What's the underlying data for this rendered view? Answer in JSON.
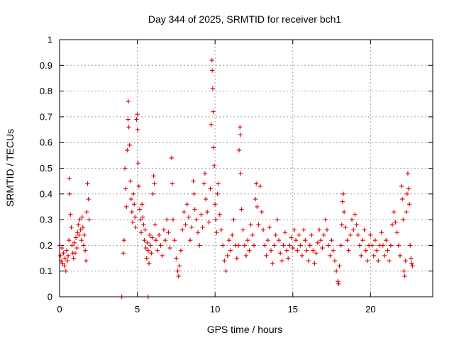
{
  "chart_data": {
    "type": "scatter",
    "title": "Day 344 of 2025, SRMTID for receiver bch1",
    "xlabel": "GPS time / hours",
    "ylabel": "SRMTID / TECUs",
    "xlim": [
      0,
      24
    ],
    "ylim": [
      0,
      1
    ],
    "xticks": [
      0,
      5,
      10,
      15,
      20
    ],
    "xtick_labels": [
      "0",
      "5",
      "10",
      "15",
      "20"
    ],
    "yticks": [
      0,
      0.1,
      0.2,
      0.3,
      0.4,
      0.5,
      0.6,
      0.7,
      0.8,
      0.9,
      1
    ],
    "ytick_labels": [
      "0",
      "0.1",
      "0.2",
      "0.3",
      "0.4",
      "0.5",
      "0.6",
      "0.7",
      "0.8",
      "0.9",
      "1"
    ],
    "grid": true,
    "marker": "+",
    "color": "#dd0000",
    "series": [
      {
        "name": "SRMTID",
        "points": [
          [
            0.0,
            0.2
          ],
          [
            0.05,
            0.16
          ],
          [
            0.1,
            0.14
          ],
          [
            0.15,
            0.19
          ],
          [
            0.2,
            0.13
          ],
          [
            0.25,
            0.17
          ],
          [
            0.3,
            0.12
          ],
          [
            0.35,
            0.15
          ],
          [
            0.4,
            0.1
          ],
          [
            0.45,
            0.18
          ],
          [
            0.5,
            0.14
          ],
          [
            0.55,
            0.16
          ],
          [
            0.6,
            0.22
          ],
          [
            0.62,
            0.46
          ],
          [
            0.65,
            0.4
          ],
          [
            0.7,
            0.32
          ],
          [
            0.75,
            0.27
          ],
          [
            0.8,
            0.2
          ],
          [
            0.85,
            0.17
          ],
          [
            0.9,
            0.15
          ],
          [
            0.95,
            0.21
          ],
          [
            1.0,
            0.17
          ],
          [
            1.05,
            0.23
          ],
          [
            1.1,
            0.19
          ],
          [
            1.15,
            0.25
          ],
          [
            1.2,
            0.28
          ],
          [
            1.25,
            0.24
          ],
          [
            1.3,
            0.3
          ],
          [
            1.35,
            0.26
          ],
          [
            1.4,
            0.22
          ],
          [
            1.45,
            0.31
          ],
          [
            1.5,
            0.27
          ],
          [
            1.55,
            0.2
          ],
          [
            1.6,
            0.24
          ],
          [
            1.65,
            0.18
          ],
          [
            1.7,
            0.14
          ],
          [
            1.75,
            0.33
          ],
          [
            1.8,
            0.44
          ],
          [
            1.85,
            0.38
          ],
          [
            1.9,
            0.3
          ],
          [
            4.1,
            0.17
          ],
          [
            4.15,
            0.22
          ],
          [
            4.2,
            0.5
          ],
          [
            4.25,
            0.42
          ],
          [
            4.3,
            0.35
          ],
          [
            4.35,
            0.57
          ],
          [
            4.4,
            0.69
          ],
          [
            4.42,
            0.76
          ],
          [
            4.45,
            0.66
          ],
          [
            4.5,
            0.59
          ],
          [
            4.55,
            0.45
          ],
          [
            4.6,
            0.38
          ],
          [
            4.65,
            0.33
          ],
          [
            4.7,
            0.29
          ],
          [
            4.75,
            0.4
          ],
          [
            4.8,
            0.36
          ],
          [
            4.85,
            0.31
          ],
          [
            4.9,
            0.27
          ],
          [
            4.95,
            0.69
          ],
          [
            5.0,
            0.71
          ],
          [
            5.02,
            0.65
          ],
          [
            5.05,
            0.52
          ],
          [
            5.1,
            0.43
          ],
          [
            5.15,
            0.34
          ],
          [
            5.2,
            0.3
          ],
          [
            5.25,
            0.25
          ],
          [
            5.3,
            0.36
          ],
          [
            5.35,
            0.31
          ],
          [
            5.4,
            0.28
          ],
          [
            5.45,
            0.22
          ],
          [
            5.5,
            0.26
          ],
          [
            5.55,
            0.19
          ],
          [
            5.6,
            0.15
          ],
          [
            5.65,
            0.21
          ],
          [
            5.7,
            0.18
          ],
          [
            5.75,
            0.13
          ],
          [
            5.8,
            0.24
          ],
          [
            5.85,
            0.2
          ],
          [
            5.9,
            0.17
          ],
          [
            5.95,
            0.23
          ],
          [
            6.0,
            0.4
          ],
          [
            6.05,
            0.47
          ],
          [
            6.1,
            0.44
          ],
          [
            6.15,
            0.28
          ],
          [
            6.2,
            0.22
          ],
          [
            6.3,
            0.18
          ],
          [
            6.4,
            0.24
          ],
          [
            6.5,
            0.2
          ],
          [
            6.6,
            0.16
          ],
          [
            6.7,
            0.26
          ],
          [
            6.8,
            0.22
          ],
          [
            6.9,
            0.3
          ],
          [
            7.0,
            0.25
          ],
          [
            7.1,
            0.19
          ],
          [
            7.2,
            0.54
          ],
          [
            7.25,
            0.44
          ],
          [
            7.3,
            0.3
          ],
          [
            7.4,
            0.22
          ],
          [
            7.5,
            0.15
          ],
          [
            7.6,
            0.1
          ],
          [
            7.65,
            0.08
          ],
          [
            7.7,
            0.12
          ],
          [
            7.8,
            0.18
          ],
          [
            7.9,
            0.26
          ],
          [
            8.0,
            0.33
          ],
          [
            8.1,
            0.28
          ],
          [
            8.2,
            0.36
          ],
          [
            8.3,
            0.31
          ],
          [
            8.4,
            0.22
          ],
          [
            8.5,
            0.27
          ],
          [
            8.6,
            0.45
          ],
          [
            8.65,
            0.4
          ],
          [
            8.7,
            0.34
          ],
          [
            8.8,
            0.3
          ],
          [
            8.9,
            0.25
          ],
          [
            9.0,
            0.2
          ],
          [
            9.1,
            0.32
          ],
          [
            9.2,
            0.27
          ],
          [
            9.3,
            0.44
          ],
          [
            9.35,
            0.48
          ],
          [
            9.4,
            0.38
          ],
          [
            9.5,
            0.33
          ],
          [
            9.6,
            0.29
          ],
          [
            9.7,
            0.42
          ],
          [
            9.75,
            0.67
          ],
          [
            9.8,
            0.92
          ],
          [
            9.82,
            0.88
          ],
          [
            9.85,
            0.81
          ],
          [
            9.88,
            0.72
          ],
          [
            9.9,
            0.58
          ],
          [
            9.95,
            0.51
          ],
          [
            10.0,
            0.36
          ],
          [
            10.05,
            0.3
          ],
          [
            10.1,
            0.25
          ],
          [
            10.15,
            0.4
          ],
          [
            10.2,
            0.44
          ],
          [
            10.3,
            0.32
          ],
          [
            10.4,
            0.26
          ],
          [
            10.5,
            0.2
          ],
          [
            10.6,
            0.14
          ],
          [
            10.7,
            0.1
          ],
          [
            10.8,
            0.16
          ],
          [
            10.9,
            0.22
          ],
          [
            11.0,
            0.18
          ],
          [
            11.1,
            0.24
          ],
          [
            11.2,
            0.3
          ],
          [
            11.3,
            0.2
          ],
          [
            11.4,
            0.15
          ],
          [
            11.5,
            0.2
          ],
          [
            11.55,
            0.57
          ],
          [
            11.6,
            0.66
          ],
          [
            11.62,
            0.63
          ],
          [
            11.65,
            0.48
          ],
          [
            11.7,
            0.34
          ],
          [
            11.8,
            0.26
          ],
          [
            11.9,
            0.2
          ],
          [
            12.0,
            0.16
          ],
          [
            12.1,
            0.22
          ],
          [
            12.2,
            0.18
          ],
          [
            12.3,
            0.28
          ],
          [
            12.4,
            0.24
          ],
          [
            12.5,
            0.2
          ],
          [
            12.6,
            0.38
          ],
          [
            12.65,
            0.44
          ],
          [
            12.7,
            0.35
          ],
          [
            12.8,
            0.28
          ],
          [
            12.9,
            0.43
          ],
          [
            13.0,
            0.33
          ],
          [
            13.1,
            0.26
          ],
          [
            13.2,
            0.2
          ],
          [
            13.3,
            0.16
          ],
          [
            13.4,
            0.22
          ],
          [
            13.5,
            0.27
          ],
          [
            13.6,
            0.18
          ],
          [
            13.7,
            0.13
          ],
          [
            13.8,
            0.2
          ],
          [
            13.9,
            0.24
          ],
          [
            14.0,
            0.3
          ],
          [
            14.1,
            0.22
          ],
          [
            14.2,
            0.17
          ],
          [
            14.3,
            0.14
          ],
          [
            14.4,
            0.2
          ],
          [
            14.5,
            0.25
          ],
          [
            14.6,
            0.18
          ],
          [
            14.7,
            0.15
          ],
          [
            14.8,
            0.2
          ],
          [
            14.9,
            0.23
          ],
          [
            15.0,
            0.19
          ],
          [
            15.1,
            0.26
          ],
          [
            15.2,
            0.22
          ],
          [
            15.3,
            0.18
          ],
          [
            15.4,
            0.24
          ],
          [
            15.5,
            0.2
          ],
          [
            15.6,
            0.16
          ],
          [
            15.7,
            0.26
          ],
          [
            15.8,
            0.22
          ],
          [
            15.9,
            0.18
          ],
          [
            16.0,
            0.14
          ],
          [
            16.1,
            0.2
          ],
          [
            16.2,
            0.24
          ],
          [
            16.3,
            0.18
          ],
          [
            16.4,
            0.13
          ],
          [
            16.5,
            0.17
          ],
          [
            16.6,
            0.21
          ],
          [
            16.7,
            0.26
          ],
          [
            16.8,
            0.22
          ],
          [
            16.9,
            0.19
          ],
          [
            17.0,
            0.24
          ],
          [
            17.1,
            0.3
          ],
          [
            17.2,
            0.26
          ],
          [
            17.3,
            0.2
          ],
          [
            17.4,
            0.16
          ],
          [
            17.5,
            0.22
          ],
          [
            17.6,
            0.18
          ],
          [
            17.7,
            0.14
          ],
          [
            17.8,
            0.1
          ],
          [
            17.9,
            0.06
          ],
          [
            17.95,
            0.05
          ],
          [
            18.0,
            0.12
          ],
          [
            18.1,
            0.2
          ],
          [
            18.15,
            0.28
          ],
          [
            18.2,
            0.37
          ],
          [
            18.25,
            0.4
          ],
          [
            18.3,
            0.33
          ],
          [
            18.4,
            0.27
          ],
          [
            18.5,
            0.22
          ],
          [
            18.6,
            0.18
          ],
          [
            18.7,
            0.24
          ],
          [
            18.8,
            0.3
          ],
          [
            18.9,
            0.26
          ],
          [
            19.0,
            0.32
          ],
          [
            19.1,
            0.28
          ],
          [
            19.2,
            0.24
          ],
          [
            19.3,
            0.2
          ],
          [
            19.4,
            0.16
          ],
          [
            19.5,
            0.22
          ],
          [
            19.6,
            0.26
          ],
          [
            19.7,
            0.18
          ],
          [
            19.8,
            0.14
          ],
          [
            19.9,
            0.2
          ],
          [
            20.0,
            0.24
          ],
          [
            20.1,
            0.2
          ],
          [
            20.2,
            0.16
          ],
          [
            20.3,
            0.22
          ],
          [
            20.4,
            0.18
          ],
          [
            20.5,
            0.14
          ],
          [
            20.6,
            0.2
          ],
          [
            20.7,
            0.25
          ],
          [
            20.8,
            0.2
          ],
          [
            20.9,
            0.16
          ],
          [
            21.0,
            0.22
          ],
          [
            21.1,
            0.18
          ],
          [
            21.2,
            0.14
          ],
          [
            21.3,
            0.2
          ],
          [
            21.4,
            0.28
          ],
          [
            21.5,
            0.33
          ],
          [
            21.6,
            0.29
          ],
          [
            21.7,
            0.25
          ],
          [
            21.8,
            0.2
          ],
          [
            21.9,
            0.16
          ],
          [
            22.0,
            0.43
          ],
          [
            22.05,
            0.38
          ],
          [
            22.1,
            0.3
          ],
          [
            22.15,
            0.1
          ],
          [
            22.2,
            0.08
          ],
          [
            22.25,
            0.14
          ],
          [
            22.3,
            0.33
          ],
          [
            22.35,
            0.4
          ],
          [
            22.4,
            0.48
          ],
          [
            22.45,
            0.42
          ],
          [
            22.5,
            0.36
          ],
          [
            22.55,
            0.2
          ],
          [
            22.6,
            0.15
          ],
          [
            22.65,
            0.13
          ],
          [
            22.7,
            0.12
          ],
          [
            4.0,
            0.0
          ],
          [
            5.7,
            0.0
          ]
        ]
      }
    ]
  }
}
